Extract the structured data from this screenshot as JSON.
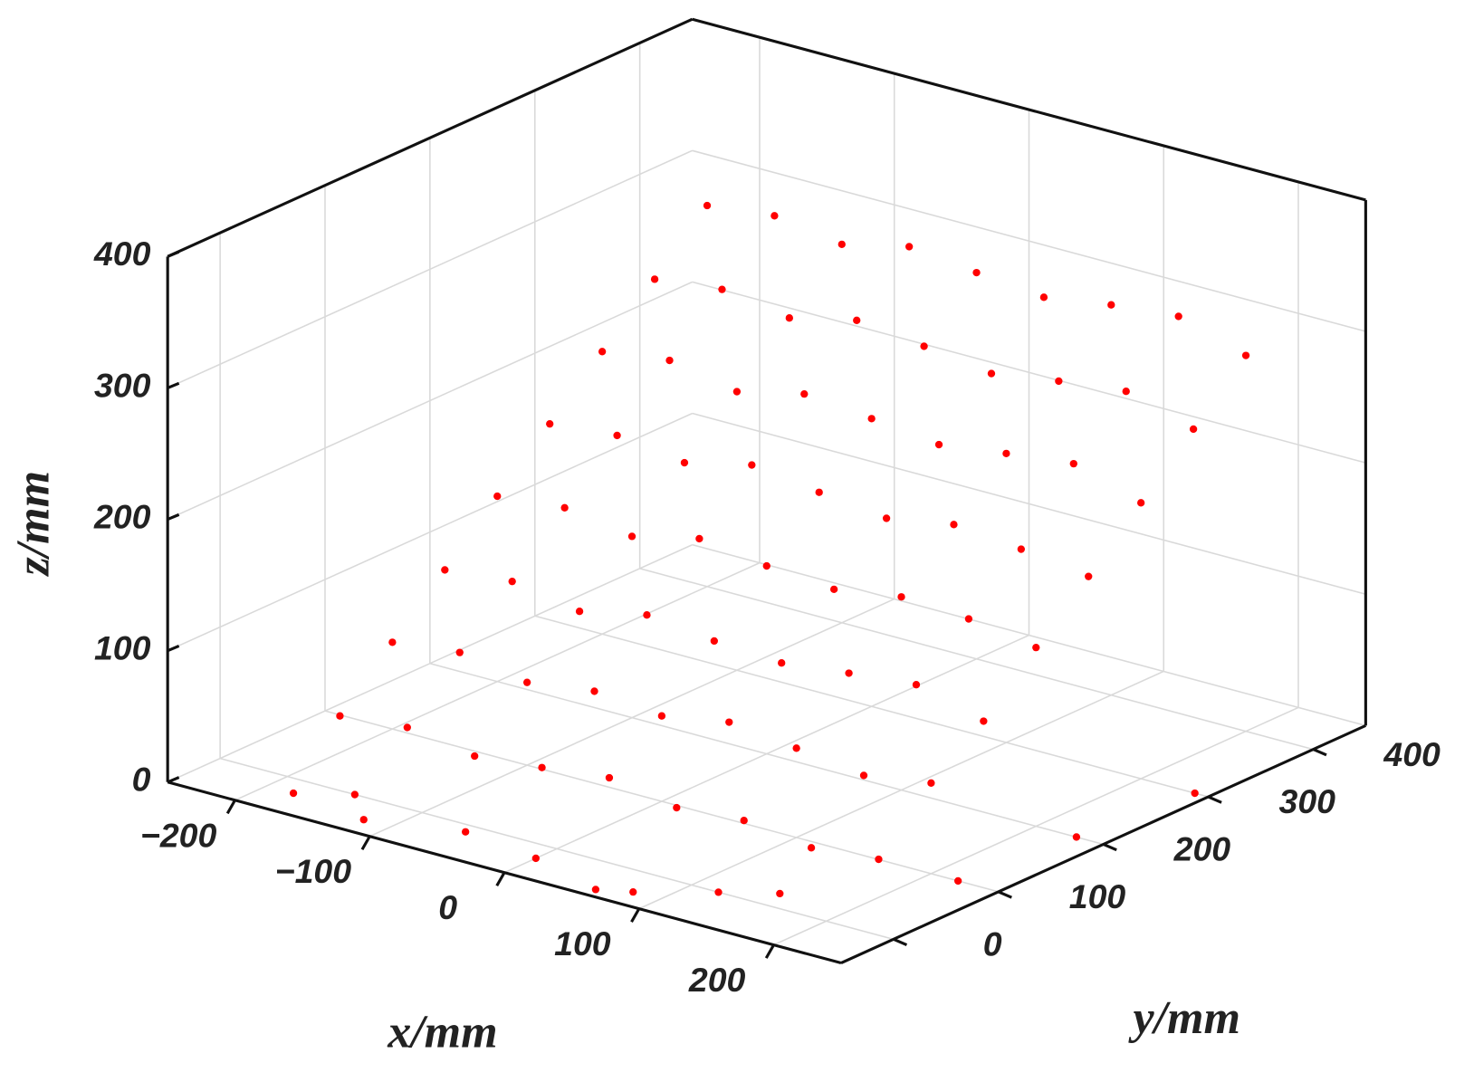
{
  "chart_data": {
    "type": "scatter3d",
    "x_label": "x/mm",
    "y_label": "y/mm",
    "z_label": "z/mm",
    "xlim": [
      -250,
      250
    ],
    "ylim": [
      -50,
      450
    ],
    "zlim": [
      0,
      400
    ],
    "xticks": [
      {
        "value": -200,
        "label": "−200"
      },
      {
        "value": -100,
        "label": "−100"
      },
      0,
      100,
      200
    ],
    "yticks": [
      0,
      100,
      200,
      300,
      400
    ],
    "zticks": [
      0,
      100,
      200,
      300,
      400
    ],
    "grid": true,
    "series": [
      {
        "color": "#ff0000",
        "x": [
          -200,
          -150,
          -100,
          -50,
          0,
          50,
          100,
          150,
          200,
          -200,
          -150,
          -100,
          -50,
          0,
          50,
          100,
          150,
          200,
          -200,
          -150,
          -100,
          -50,
          0,
          50,
          100,
          150,
          200,
          -200,
          -150,
          -100,
          -50,
          0,
          50,
          100,
          150,
          200,
          -200,
          -150,
          -100,
          -50,
          0,
          50,
          100,
          150,
          200,
          -200,
          -150,
          -100,
          -50,
          0,
          50,
          100,
          150,
          200,
          -200,
          -150,
          -100,
          -50,
          0,
          50,
          100,
          150,
          200,
          -200,
          -150,
          -100,
          -50,
          0,
          50,
          100,
          150,
          200,
          -180,
          -150,
          -120,
          -60,
          0,
          60,
          80,
          120,
          150,
          220,
          230,
          240
        ],
        "y": [
          50,
          50,
          50,
          50,
          50,
          50,
          50,
          50,
          50,
          100,
          100,
          100,
          100,
          100,
          100,
          100,
          100,
          100,
          150,
          150,
          150,
          150,
          150,
          150,
          150,
          150,
          150,
          200,
          200,
          200,
          200,
          200,
          200,
          200,
          200,
          200,
          250,
          250,
          250,
          250,
          250,
          250,
          250,
          250,
          250,
          300,
          300,
          300,
          300,
          300,
          300,
          300,
          300,
          300,
          350,
          350,
          350,
          350,
          350,
          350,
          350,
          350,
          350,
          400,
          400,
          400,
          400,
          400,
          400,
          400,
          400,
          400,
          -20,
          0,
          -30,
          -10,
          -20,
          -40,
          -30,
          0,
          20,
          100,
          200,
          300
        ],
        "z": [
          28,
          33,
          25,
          30,
          36,
          27,
          31,
          24,
          29,
          66,
          72,
          63,
          70,
          65,
          74,
          68,
          61,
          69,
          103,
          108,
          99,
          110,
          104,
          101,
          107,
          112,
          98,
          141,
          146,
          138,
          150,
          143,
          139,
          147,
          144,
          136,
          178,
          183,
          176,
          188,
          181,
          175,
          184,
          179,
          172,
          215,
          222,
          212,
          224,
          219,
          213,
          220,
          226,
          210,
          252,
          258,
          250,
          262,
          256,
          249,
          257,
          263,
          248,
          290,
          296,
          288,
          300,
          294,
          289,
          297,
          302,
          286,
          0,
          0,
          0,
          0,
          0,
          0,
          0,
          0,
          0,
          0,
          0,
          0
        ]
      }
    ]
  }
}
